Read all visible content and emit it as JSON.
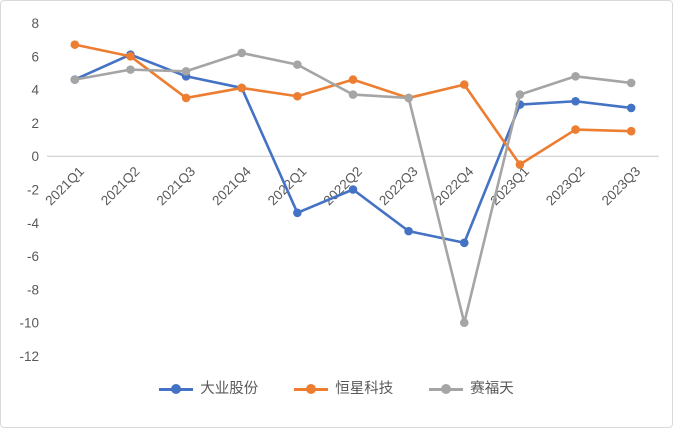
{
  "chart_data": {
    "type": "line",
    "title": "",
    "xlabel": "",
    "ylabel": "",
    "categories": [
      "2021Q1",
      "2021Q2",
      "2021Q3",
      "2021Q4",
      "2022Q1",
      "2022Q2",
      "2022Q3",
      "2022Q4",
      "2023Q1",
      "2023Q2",
      "2023Q3"
    ],
    "series": [
      {
        "name": "大业股份",
        "color": "#4472C4",
        "values": [
          4.6,
          6.1,
          4.8,
          4.1,
          -3.4,
          -2.0,
          -4.5,
          -5.2,
          3.1,
          3.3,
          2.9
        ]
      },
      {
        "name": "恒星科技",
        "color": "#ED7D31",
        "values": [
          6.7,
          6.0,
          3.5,
          4.1,
          3.6,
          4.6,
          3.5,
          4.3,
          -0.5,
          1.6,
          1.5
        ]
      },
      {
        "name": "赛福天",
        "color": "#A5A5A5",
        "values": [
          4.6,
          5.2,
          5.1,
          6.2,
          5.5,
          3.7,
          3.5,
          -10.0,
          3.7,
          4.8,
          4.4
        ]
      }
    ],
    "ylim": [
      -12,
      8
    ],
    "ytick_step": 2,
    "yticks": [
      8,
      6,
      4,
      2,
      0,
      -2,
      -4,
      -6,
      -8,
      -10,
      -12
    ],
    "grid": false,
    "zero_axis_line": true,
    "x_label_rotation_deg": -45,
    "legend_position": "bottom",
    "axis_text_color": "#595959"
  }
}
